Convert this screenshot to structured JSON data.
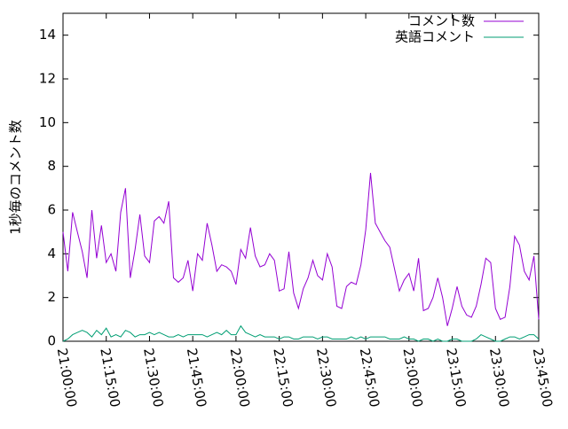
{
  "chart_data": {
    "type": "line",
    "ylabel": "1秒毎のコメント数",
    "x": [
      "21:00:00",
      "21:01:40",
      "21:03:20",
      "21:05:00",
      "21:06:40",
      "21:08:20",
      "21:10:00",
      "21:11:40",
      "21:13:20",
      "21:15:00",
      "21:16:40",
      "21:18:20",
      "21:20:00",
      "21:21:40",
      "21:23:20",
      "21:25:00",
      "21:26:40",
      "21:28:20",
      "21:30:00",
      "21:31:40",
      "21:33:20",
      "21:35:00",
      "21:36:40",
      "21:38:20",
      "21:40:00",
      "21:41:40",
      "21:43:20",
      "21:45:00",
      "21:46:40",
      "21:48:20",
      "21:50:00",
      "21:51:40",
      "21:53:20",
      "21:55:00",
      "21:56:40",
      "21:58:20",
      "22:00:00",
      "22:01:40",
      "22:03:20",
      "22:05:00",
      "22:06:40",
      "22:08:20",
      "22:10:00",
      "22:11:40",
      "22:13:20",
      "22:15:00",
      "22:16:40",
      "22:18:20",
      "22:20:00",
      "22:21:40",
      "22:23:20",
      "22:25:00",
      "22:26:40",
      "22:28:20",
      "22:30:00",
      "22:31:40",
      "22:33:20",
      "22:35:00",
      "22:36:40",
      "22:38:20",
      "22:40:00",
      "22:41:40",
      "22:43:20",
      "22:45:00",
      "22:46:40",
      "22:48:20",
      "22:50:00",
      "22:51:40",
      "22:53:20",
      "22:55:00",
      "22:56:40",
      "22:58:20",
      "23:00:00",
      "23:01:40",
      "23:03:20",
      "23:05:00",
      "23:06:40",
      "23:08:20",
      "23:10:00",
      "23:11:40",
      "23:13:20",
      "23:15:00",
      "23:16:40",
      "23:18:20",
      "23:20:00",
      "23:21:40",
      "23:23:20",
      "23:25:00",
      "23:26:40",
      "23:28:20",
      "23:30:00",
      "23:31:40",
      "23:33:20",
      "23:35:00",
      "23:36:40",
      "23:38:20",
      "23:40:00",
      "23:41:40",
      "23:43:20",
      "23:45:00"
    ],
    "series": [
      {
        "name": "コメント数",
        "color": "#9400d3",
        "values": [
          5.0,
          3.2,
          5.9,
          5.0,
          4.1,
          2.9,
          6.0,
          3.8,
          5.3,
          3.6,
          4.0,
          3.2,
          5.9,
          7.0,
          2.9,
          4.2,
          5.8,
          3.9,
          3.6,
          5.5,
          5.7,
          5.4,
          6.4,
          2.9,
          2.7,
          2.9,
          3.7,
          2.3,
          4.0,
          3.7,
          5.4,
          4.4,
          3.2,
          3.5,
          3.4,
          3.2,
          2.6,
          4.2,
          3.8,
          5.2,
          3.9,
          3.4,
          3.5,
          4.0,
          3.7,
          2.3,
          2.4,
          4.1,
          2.2,
          1.5,
          2.4,
          2.9,
          3.7,
          3.0,
          2.8,
          4.0,
          3.4,
          1.6,
          1.5,
          2.5,
          2.7,
          2.6,
          3.5,
          5.1,
          7.7,
          5.4,
          5.0,
          4.6,
          4.3,
          3.3,
          2.3,
          2.8,
          3.1,
          2.3,
          3.8,
          1.4,
          1.5,
          2.0,
          2.9,
          2.0,
          0.7,
          1.5,
          2.5,
          1.6,
          1.2,
          1.1,
          1.6,
          2.6,
          3.8,
          3.6,
          1.5,
          1.0,
          1.1,
          2.5,
          4.8,
          4.4,
          3.2,
          2.8,
          3.9,
          1.0
        ]
      },
      {
        "name": "英語コメント",
        "color": "#009e73",
        "values": [
          0,
          0.1,
          0.3,
          0.4,
          0.5,
          0.4,
          0.2,
          0.5,
          0.3,
          0.6,
          0.2,
          0.3,
          0.2,
          0.5,
          0.4,
          0.2,
          0.3,
          0.3,
          0.4,
          0.3,
          0.4,
          0.3,
          0.2,
          0.2,
          0.3,
          0.2,
          0.3,
          0.3,
          0.3,
          0.3,
          0.2,
          0.3,
          0.4,
          0.3,
          0.5,
          0.3,
          0.3,
          0.7,
          0.4,
          0.3,
          0.2,
          0.3,
          0.2,
          0.2,
          0.2,
          0.1,
          0.2,
          0.2,
          0.1,
          0.1,
          0.2,
          0.2,
          0.2,
          0.1,
          0.2,
          0.2,
          0.1,
          0.1,
          0.1,
          0.1,
          0.2,
          0.1,
          0.2,
          0.1,
          0.2,
          0.2,
          0.2,
          0.2,
          0.1,
          0.1,
          0.1,
          0.2,
          0.1,
          0.1,
          0,
          0.1,
          0.1,
          0,
          0.1,
          0,
          0,
          0.1,
          0.1,
          0,
          0,
          0,
          0.1,
          0.3,
          0.2,
          0.1,
          0,
          0,
          0.1,
          0.2,
          0.2,
          0.1,
          0.2,
          0.3,
          0.3,
          0.1
        ]
      }
    ],
    "xlim": [
      "21:00:00",
      "23:45:00"
    ],
    "xticks": [
      "21:00:00",
      "21:15:00",
      "21:30:00",
      "21:45:00",
      "22:00:00",
      "22:15:00",
      "22:30:00",
      "22:45:00",
      "23:00:00",
      "23:15:00",
      "23:30:00",
      "23:45:00"
    ],
    "ylim": [
      0,
      15
    ],
    "yticks": [
      0,
      2,
      4,
      6,
      8,
      10,
      12,
      14
    ],
    "legend": "top-right"
  }
}
